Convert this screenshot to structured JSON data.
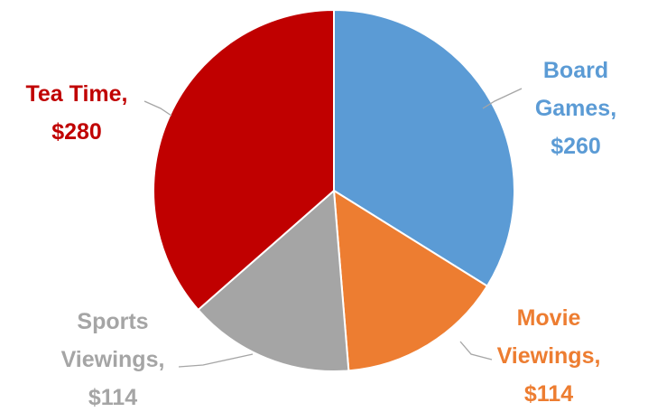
{
  "chart_data": {
    "type": "pie",
    "title": "",
    "start_angle_deg": 0,
    "direction": "clockwise",
    "labels_show": "category, value",
    "slices": [
      {
        "category": "Board Games",
        "value": 260,
        "value_label": "$260",
        "color": "#5b9bd5",
        "label_lines": [
          "Board",
          "Games,",
          "$260"
        ]
      },
      {
        "category": "Movie Viewings",
        "value": 114,
        "value_label": "$114",
        "color": "#ed7d31",
        "label_lines": [
          "Movie",
          "Viewings,",
          "$114"
        ]
      },
      {
        "category": "Sports Viewings",
        "value": 114,
        "value_label": "$114",
        "color": "#a5a5a5",
        "label_lines": [
          "Sports",
          "Viewings,",
          "$114"
        ]
      },
      {
        "category": "Tea Time",
        "value": 280,
        "value_label": "$280",
        "color": "#c00000",
        "label_lines": [
          "Tea Time,",
          "$280"
        ]
      }
    ]
  }
}
